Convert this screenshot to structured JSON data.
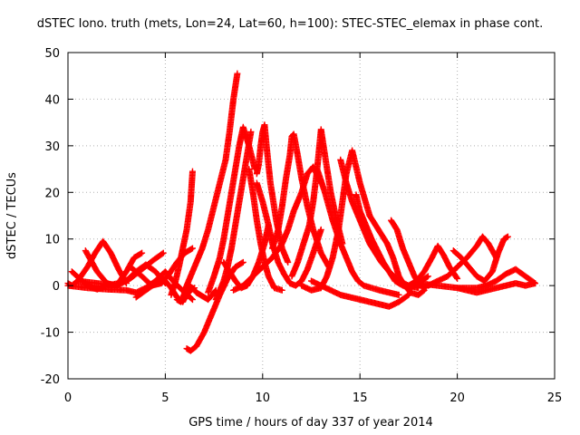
{
  "chart_data": {
    "type": "scatter",
    "title": "dSTEC Iono. truth (mets, Lon=24, Lat=60, h=100): STEC-STEC_elemax in phase cont.",
    "xlabel": "GPS time / hours of day 337 of year 2014",
    "ylabel": "dSTEC  / TECUs",
    "xlim": [
      0,
      25
    ],
    "ylim": [
      -20,
      50
    ],
    "xticks": [
      "0",
      "5",
      "10",
      "15",
      "20",
      "25"
    ],
    "yticks": [
      "-20",
      "-10",
      "0",
      "10",
      "20",
      "30",
      "40",
      "50"
    ],
    "grid": true,
    "marker": "+",
    "color": "#ff0000",
    "series": [
      {
        "x": [
          0.0,
          0.2,
          0.5,
          1.0,
          1.4,
          1.8,
          2.2,
          2.6,
          3.0
        ],
        "y": [
          0.5,
          0.0,
          1.0,
          4.0,
          7.0,
          9.5,
          7.0,
          3.5,
          0.5
        ]
      },
      {
        "x": [
          0.9,
          1.5,
          2.0,
          2.5,
          3.0,
          3.4,
          3.8
        ],
        "y": [
          7.5,
          3.0,
          0.5,
          0.0,
          3.0,
          6.0,
          7.0
        ]
      },
      {
        "x": [
          0.2,
          0.6,
          1.0,
          1.5,
          2.0,
          2.6,
          3.2,
          3.8,
          4.4,
          4.9
        ],
        "y": [
          3.0,
          1.5,
          0.0,
          -0.8,
          0.0,
          0.5,
          1.5,
          3.5,
          5.5,
          7.0
        ]
      },
      {
        "x": [
          0.5,
          1.5,
          2.5,
          3.0,
          3.5,
          4.0,
          4.5,
          5.0
        ],
        "y": [
          1.0,
          0.5,
          0.0,
          1.0,
          3.0,
          4.5,
          3.0,
          0.5
        ]
      },
      {
        "x": [
          3.2,
          3.8,
          4.3,
          4.8,
          5.2,
          5.6,
          6.0,
          6.4
        ],
        "y": [
          4.0,
          2.0,
          0.0,
          0.5,
          2.5,
          5.0,
          7.0,
          8.0
        ]
      },
      {
        "x": [
          0.0,
          1.0,
          2.0,
          3.0,
          3.5,
          4.0,
          4.5,
          5.0,
          5.5,
          6.0,
          6.4
        ],
        "y": [
          0.0,
          -0.5,
          -0.8,
          -1.0,
          -1.5,
          -0.5,
          1.0,
          3.0,
          0.5,
          -1.5,
          -3.0
        ]
      },
      {
        "x": [
          3.5,
          4.0,
          4.5,
          5.0,
          5.3,
          5.6,
          5.9,
          6.1,
          6.3,
          6.5
        ],
        "y": [
          -2.5,
          -1.0,
          0.5,
          1.0,
          -0.5,
          -2.5,
          -3.5,
          -2.0,
          -1.0,
          -0.5
        ]
      },
      {
        "x": [
          5.3,
          5.5,
          5.7,
          5.9,
          6.1,
          6.3,
          6.4
        ],
        "y": [
          -2.0,
          0.5,
          4.0,
          8.0,
          12.0,
          18.0,
          24.5
        ]
      },
      {
        "x": [
          5.6,
          5.8,
          6.0,
          6.2,
          6.4,
          6.6,
          6.8,
          7.0,
          7.2,
          7.4,
          7.6
        ],
        "y": [
          -3.0,
          -3.5,
          -1.5,
          0.0,
          -0.5,
          -1.5,
          -2.0,
          -2.5,
          -3.0,
          -2.0,
          -1.0
        ]
      },
      {
        "x": [
          6.0,
          6.3,
          6.6,
          6.9,
          7.2,
          7.5,
          7.8,
          8.1,
          8.3,
          8.5,
          8.7
        ],
        "y": [
          -1.0,
          2.0,
          5.0,
          8.0,
          12.0,
          17.0,
          22.0,
          27.0,
          33.0,
          40.0,
          45.5
        ]
      },
      {
        "x": [
          6.1,
          6.3,
          6.6,
          7.0,
          7.4,
          7.8,
          8.2,
          8.6,
          9.0
        ],
        "y": [
          -13.5,
          -14.0,
          -13.0,
          -10.0,
          -6.0,
          -2.0,
          1.5,
          4.0,
          5.0
        ]
      },
      {
        "x": [
          7.2,
          7.5,
          7.8,
          8.0,
          8.2,
          8.4,
          8.6,
          8.8,
          9.0,
          9.3,
          9.6
        ],
        "y": [
          -1.5,
          2.0,
          6.0,
          10.0,
          15.0,
          20.0,
          25.0,
          30.0,
          34.0,
          30.0,
          25.0
        ]
      },
      {
        "x": [
          7.6,
          7.8,
          8.0,
          8.2,
          8.4,
          8.6,
          8.8,
          9.0,
          9.2,
          9.4
        ],
        "y": [
          -3.0,
          -1.0,
          1.0,
          4.0,
          8.0,
          13.0,
          18.0,
          23.0,
          28.0,
          33.0
        ]
      },
      {
        "x": [
          8.0,
          8.3,
          8.6,
          8.9,
          9.2,
          9.5,
          9.8,
          10.1,
          10.3
        ],
        "y": [
          5.0,
          3.0,
          1.0,
          -0.5,
          0.0,
          2.0,
          5.0,
          9.0,
          13.0
        ]
      },
      {
        "x": [
          9.3,
          9.5,
          9.7,
          9.9,
          10.1,
          10.3,
          10.6,
          11.0
        ],
        "y": [
          25.0,
          20.0,
          14.0,
          9.0,
          5.0,
          2.0,
          -0.5,
          -1.0
        ]
      },
      {
        "x": [
          9.7,
          9.8,
          9.9,
          10.0,
          10.1,
          10.2,
          10.4,
          10.7,
          11.0,
          11.3
        ],
        "y": [
          24.0,
          26.0,
          30.0,
          33.0,
          34.5,
          30.0,
          22.0,
          14.0,
          8.0,
          5.0
        ]
      },
      {
        "x": [
          8.5,
          9.0,
          9.5,
          10.0,
          10.5,
          11.0,
          11.3,
          11.6,
          12.0,
          12.3,
          12.6,
          13.0
        ],
        "y": [
          -1.0,
          0.0,
          2.0,
          4.0,
          6.0,
          9.0,
          12.0,
          16.0,
          20.0,
          24.0,
          25.5,
          22.0
        ]
      },
      {
        "x": [
          9.7,
          10.0,
          10.3,
          10.5,
          10.8,
          11.1,
          11.4,
          11.7,
          12.0,
          12.3,
          12.6,
          13.0
        ],
        "y": [
          22.0,
          18.0,
          13.0,
          9.0,
          5.0,
          2.5,
          0.5,
          0.0,
          1.0,
          3.5,
          7.0,
          12.0
        ]
      },
      {
        "x": [
          10.5,
          10.8,
          11.0,
          11.2,
          11.4,
          11.5,
          11.6,
          11.8,
          12.0,
          12.3,
          12.6,
          13.0,
          13.4
        ],
        "y": [
          8.0,
          12.0,
          17.0,
          23.0,
          28.0,
          32.0,
          32.5,
          28.0,
          23.0,
          17.0,
          12.0,
          7.0,
          4.0
        ]
      },
      {
        "x": [
          11.5,
          11.8,
          12.1,
          12.4,
          12.6,
          12.8,
          13.0,
          13.2,
          13.5,
          13.8,
          14.1
        ],
        "y": [
          2.0,
          5.0,
          9.0,
          13.0,
          18.0,
          25.0,
          33.5,
          28.0,
          20.0,
          14.0,
          9.0
        ]
      },
      {
        "x": [
          12.0,
          12.5,
          13.0,
          13.3,
          13.6,
          13.9,
          14.1,
          14.3,
          14.6,
          15.0,
          15.5
        ],
        "y": [
          0.0,
          -1.0,
          -0.5,
          2.0,
          6.0,
          12.0,
          18.0,
          24.0,
          29.0,
          22.0,
          15.0
        ]
      },
      {
        "x": [
          12.8,
          13.2,
          13.6,
          14.0,
          14.3,
          14.6,
          14.9,
          15.2,
          15.6,
          16.0,
          16.5,
          17.0
        ],
        "y": [
          25.0,
          20.0,
          14.0,
          9.0,
          6.0,
          3.0,
          1.0,
          0.0,
          -0.5,
          -1.0,
          -1.5,
          -2.0
        ]
      },
      {
        "x": [
          14.0,
          14.3,
          14.6,
          14.9,
          15.2,
          15.5,
          15.8,
          16.1,
          16.5,
          17.0,
          17.5,
          18.0
        ],
        "y": [
          27.0,
          22.0,
          18.0,
          15.0,
          12.0,
          9.0,
          7.0,
          5.0,
          3.0,
          1.0,
          0.0,
          -0.5
        ]
      },
      {
        "x": [
          14.8,
          15.0,
          15.3,
          15.6,
          15.9,
          16.2,
          16.5,
          16.8,
          17.2,
          17.6,
          18.0,
          18.5
        ],
        "y": [
          19.5,
          16.0,
          13.0,
          10.0,
          7.5,
          5.0,
          3.0,
          1.0,
          0.0,
          -0.5,
          0.5,
          2.0
        ]
      },
      {
        "x": [
          15.5,
          15.8,
          16.1,
          16.4,
          16.7,
          17.0,
          17.3,
          17.6,
          18.0,
          18.3
        ],
        "y": [
          15.0,
          13.0,
          11.0,
          9.0,
          6.0,
          2.0,
          0.0,
          -1.5,
          -2.0,
          -1.0
        ]
      },
      {
        "x": [
          12.5,
          13.0,
          13.5,
          14.0,
          14.5,
          15.0,
          15.5,
          16.0,
          16.5,
          17.0,
          17.5
        ],
        "y": [
          1.0,
          0.0,
          -1.0,
          -2.0,
          -2.5,
          -3.0,
          -3.5,
          -4.0,
          -4.5,
          -3.5,
          -2.0
        ]
      },
      {
        "x": [
          16.6,
          16.9,
          17.2,
          17.5,
          17.8,
          18.1,
          18.4
        ],
        "y": [
          14.0,
          12.0,
          8.0,
          5.0,
          2.0,
          0.0,
          -0.5
        ]
      },
      {
        "x": [
          17.5,
          17.9,
          18.3,
          18.7,
          19.0,
          19.3,
          19.6,
          20.0
        ],
        "y": [
          0.0,
          1.0,
          3.0,
          6.0,
          8.5,
          6.5,
          4.0,
          1.5
        ]
      },
      {
        "x": [
          18.5,
          19.0,
          19.5,
          20.0,
          20.5,
          21.0,
          21.3,
          21.6,
          22.0
        ],
        "y": [
          0.0,
          1.0,
          2.0,
          4.0,
          6.0,
          8.5,
          10.5,
          9.0,
          6.0
        ]
      },
      {
        "x": [
          19.8,
          20.2,
          20.6,
          21.0,
          21.4,
          21.8,
          22.1,
          22.4,
          22.6
        ],
        "y": [
          7.5,
          6.0,
          4.0,
          2.0,
          1.0,
          3.0,
          7.0,
          10.0,
          10.5
        ]
      },
      {
        "x": [
          18.0,
          19.0,
          20.0,
          21.0,
          21.5,
          22.0,
          22.5,
          23.0,
          23.5,
          24.0
        ],
        "y": [
          0.5,
          0.0,
          -0.5,
          -0.5,
          0.0,
          1.0,
          2.5,
          3.5,
          2.0,
          0.5
        ]
      },
      {
        "x": [
          20.0,
          20.5,
          21.0,
          21.5,
          22.0,
          22.5,
          23.0,
          23.5,
          24.0
        ],
        "y": [
          -0.5,
          -1.0,
          -1.5,
          -1.0,
          -0.5,
          0.0,
          0.5,
          0.0,
          0.5
        ]
      }
    ]
  }
}
